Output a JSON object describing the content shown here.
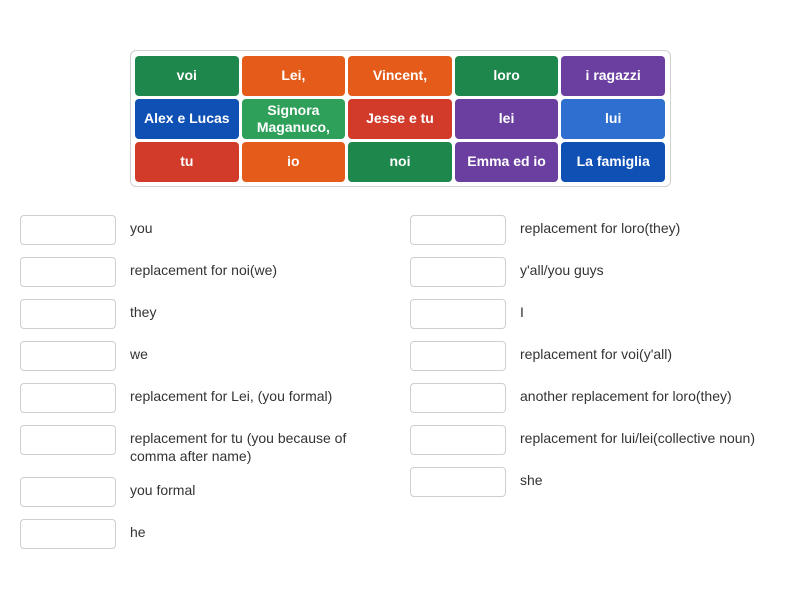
{
  "tile_rows": [
    [
      {
        "text": "voi",
        "color": "#1e874b"
      },
      {
        "text": "Lei,",
        "color": "#e45b1a"
      },
      {
        "text": "Vincent,",
        "color": "#e45b1a"
      },
      {
        "text": "loro",
        "color": "#1e874b"
      },
      {
        "text": "i ragazzi",
        "color": "#6b3fa0"
      }
    ],
    [
      {
        "text": "Alex e Lucas",
        "color": "#0f50b5"
      },
      {
        "text": "Signora Maganuco,",
        "color": "#2fa05a"
      },
      {
        "text": "Jesse e tu",
        "color": "#d23b2a"
      },
      {
        "text": "lei",
        "color": "#6b3fa0"
      },
      {
        "text": "lui",
        "color": "#2f6fd0"
      }
    ],
    [
      {
        "text": "tu",
        "color": "#d23b2a"
      },
      {
        "text": "io",
        "color": "#e45b1a"
      },
      {
        "text": "noi",
        "color": "#1e874b"
      },
      {
        "text": "Emma ed io",
        "color": "#6b3fa0"
      },
      {
        "text": "La famiglia",
        "color": "#0f50b5"
      }
    ]
  ],
  "left_items": [
    "you",
    "replacement for noi(we)",
    "they",
    "we",
    "replacement for Lei, (you formal)",
    "replacement for tu (you because of comma after name)",
    "you formal",
    "he"
  ],
  "right_items": [
    "replacement for loro(they)",
    "y'all/you guys",
    "I",
    "replacement for voi(y'all)",
    "another replacement for loro(they)",
    "replacement for lui/lei(collective noun)",
    "she"
  ],
  "style": {
    "background": "#ffffff",
    "slot_border": "#cfcfcf",
    "board_border": "#d0d0d0",
    "text_color": "#333333",
    "tile_text_color": "#ffffff"
  }
}
